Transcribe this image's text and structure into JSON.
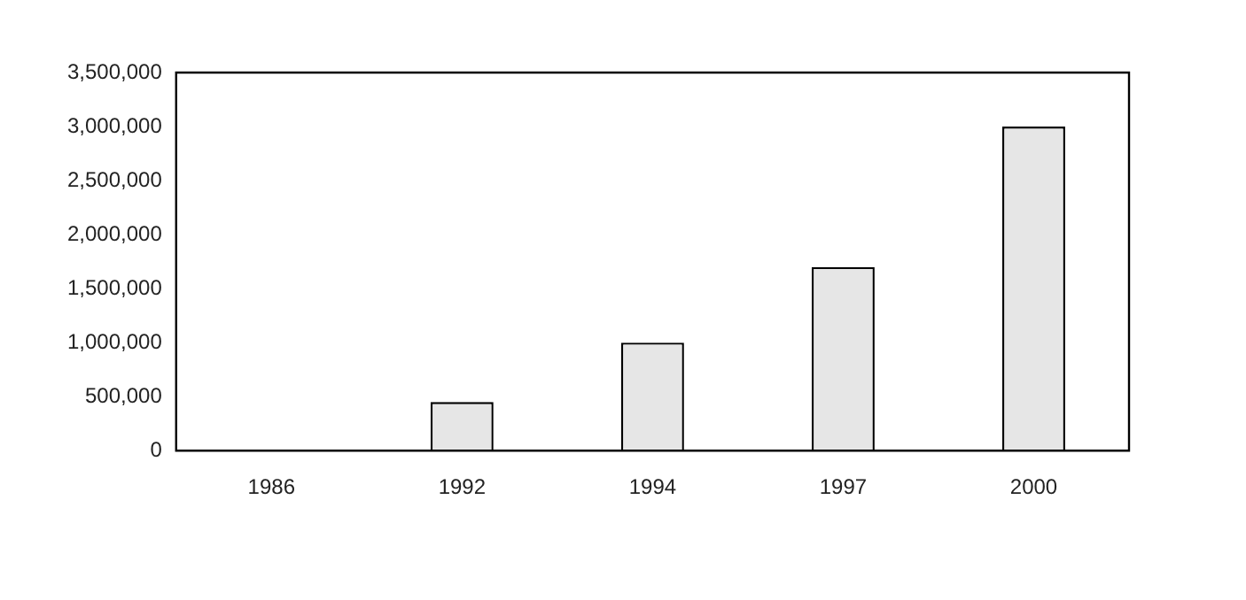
{
  "chart_data": {
    "type": "bar",
    "categories": [
      "1986",
      "1992",
      "1994",
      "1997",
      "2000"
    ],
    "values": [
      0,
      450000,
      1000000,
      1700000,
      3000000
    ],
    "color": "#e6e6e6",
    "ylim": [
      0,
      3500000
    ],
    "yticks": [
      {
        "value": 0,
        "label": "0"
      },
      {
        "value": 500000,
        "label": "500,000"
      },
      {
        "value": 1000000,
        "label": "1,000,000"
      },
      {
        "value": 1500000,
        "label": "1,500,000"
      },
      {
        "value": 2000000,
        "label": "2,000,000"
      },
      {
        "value": 2500000,
        "label": "2,500,000"
      },
      {
        "value": 3000000,
        "label": "3,000,000"
      },
      {
        "value": 3500000,
        "label": "3,500,000"
      }
    ],
    "grid": false,
    "legend": false
  }
}
